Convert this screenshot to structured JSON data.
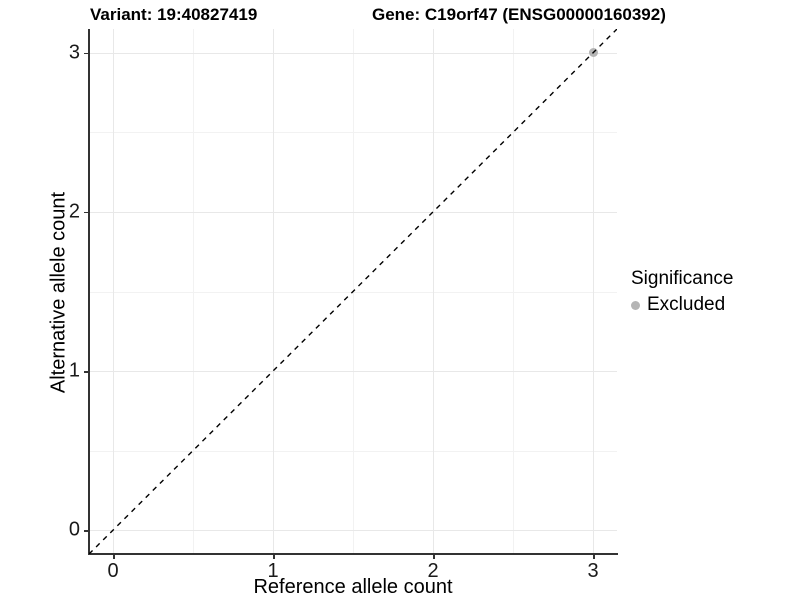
{
  "chart_data": {
    "type": "scatter",
    "title_left": "Variant: 19:40827419",
    "title_right": "Gene: C19orf47 (ENSG00000160392)",
    "xlabel": "Reference allele count",
    "ylabel": "Alternative allele count",
    "xlim": [
      -0.15,
      3.15
    ],
    "ylim": [
      -0.15,
      3.15
    ],
    "x_ticks": [
      0,
      1,
      2,
      3
    ],
    "y_ticks": [
      0,
      1,
      2,
      3
    ],
    "minor_ticks": [
      0.5,
      1.5,
      2.5
    ],
    "grid": true,
    "series": [
      {
        "name": "Excluded",
        "color": "#b5b5b5",
        "points": [
          {
            "x": 3,
            "y": 3
          }
        ]
      }
    ],
    "reference_line": {
      "kind": "identity",
      "style": "dashed",
      "color": "#000000"
    },
    "legend": {
      "position": "right",
      "title": "Significance",
      "entries": [
        {
          "label": "Excluded",
          "color": "#b5b5b5"
        }
      ]
    }
  }
}
